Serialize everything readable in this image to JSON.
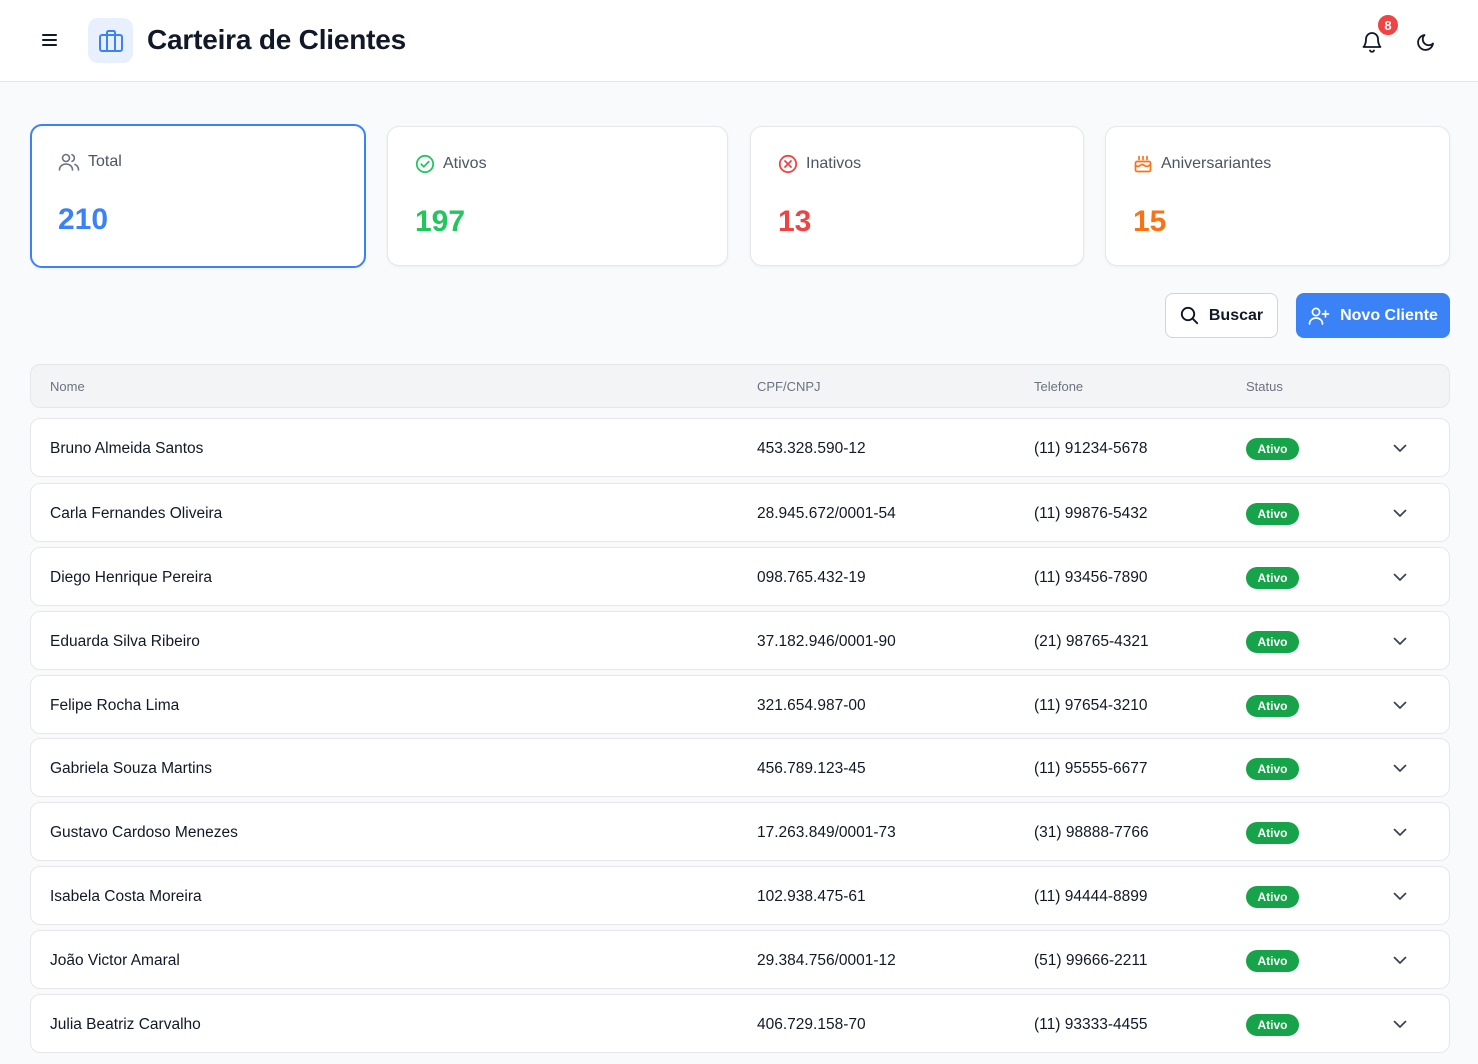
{
  "header": {
    "title": "Carteira de Clientes",
    "notification_count": "8",
    "menu_icon": "menu-icon",
    "app_icon": "briefcase-icon",
    "bell_icon": "bell-icon",
    "theme_icon": "moon-icon"
  },
  "stats": [
    {
      "label": "Total",
      "value": "210",
      "color": "#3b82f6",
      "icon": "users-icon"
    },
    {
      "label": "Ativos",
      "value": "197",
      "color": "#22c55e",
      "icon": "check-circle-icon"
    },
    {
      "label": "Inativos",
      "value": "13",
      "color": "#ef4444",
      "icon": "x-circle-icon"
    },
    {
      "label": "Aniversariantes",
      "value": "15",
      "color": "#f97316",
      "icon": "cake-icon"
    }
  ],
  "actions": {
    "search_label": "Buscar",
    "new_label": "Novo Cliente"
  },
  "table": {
    "headers": {
      "name": "Nome",
      "doc": "CPF/CNPJ",
      "phone": "Telefone",
      "status": "Status"
    },
    "rows": [
      {
        "name": "Bruno Almeida Santos",
        "doc": "453.328.590-12",
        "phone": "(11) 91234-5678",
        "status": "Ativo"
      },
      {
        "name": "Carla Fernandes Oliveira",
        "doc": "28.945.672/0001-54",
        "phone": "(11) 99876-5432",
        "status": "Ativo"
      },
      {
        "name": "Diego Henrique Pereira",
        "doc": "098.765.432-19",
        "phone": "(11) 93456-7890",
        "status": "Ativo"
      },
      {
        "name": "Eduarda Silva Ribeiro",
        "doc": "37.182.946/0001-90",
        "phone": "(21) 98765-4321",
        "status": "Ativo"
      },
      {
        "name": "Felipe Rocha Lima",
        "doc": "321.654.987-00",
        "phone": "(11) 97654-3210",
        "status": "Ativo"
      },
      {
        "name": "Gabriela Souza Martins",
        "doc": "456.789.123-45",
        "phone": "(11) 95555-6677",
        "status": "Ativo"
      },
      {
        "name": "Gustavo Cardoso Menezes",
        "doc": "17.263.849/0001-73",
        "phone": "(31) 98888-7766",
        "status": "Ativo"
      },
      {
        "name": "Isabela Costa Moreira",
        "doc": "102.938.475-61",
        "phone": "(11) 94444-8899",
        "status": "Ativo"
      },
      {
        "name": "João Victor Amaral",
        "doc": "29.384.756/0001-12",
        "phone": "(51) 99666-2211",
        "status": "Ativo"
      },
      {
        "name": "Julia Beatriz Carvalho",
        "doc": "406.729.158-70",
        "phone": "(11) 93333-4455",
        "status": "Ativo"
      }
    ]
  }
}
